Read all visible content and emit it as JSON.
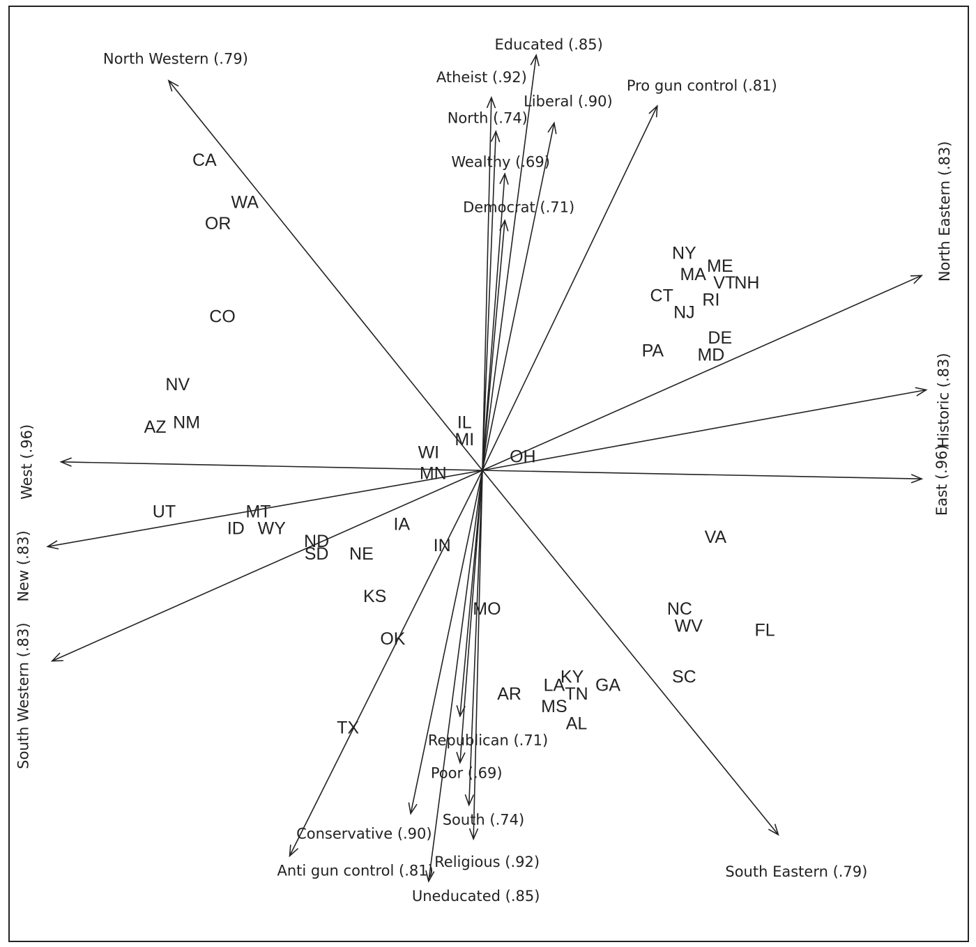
{
  "chart_data": {
    "type": "biplot",
    "vectors": [
      {
        "label": "Educated (.85)",
        "x": 0.12,
        "y": 0.98
      },
      {
        "label": "Uneducated (.85)",
        "x": -0.12,
        "y": -0.97
      },
      {
        "label": "Atheist (.92)",
        "x": 0.02,
        "y": 0.88
      },
      {
        "label": "Religious (.92)",
        "x": -0.02,
        "y": -0.87
      },
      {
        "label": "Liberal (.90)",
        "x": 0.16,
        "y": 0.82
      },
      {
        "label": "Conservative (.90)",
        "x": -0.16,
        "y": -0.81
      },
      {
        "label": "North (.74)",
        "x": 0.03,
        "y": 0.8
      },
      {
        "label": "South (.74)",
        "x": -0.03,
        "y": -0.79
      },
      {
        "label": "Wealthy (.69)",
        "x": 0.05,
        "y": 0.7
      },
      {
        "label": "Poor (.69)",
        "x": -0.05,
        "y": -0.69
      },
      {
        "label": "Democrat (.71)",
        "x": 0.05,
        "y": 0.59
      },
      {
        "label": "Republican (.71)",
        "x": -0.05,
        "y": -0.58
      },
      {
        "label": "Pro gun control (.81)",
        "x": 0.39,
        "y": 0.86
      },
      {
        "label": "Anti gun control (.81)",
        "x": -0.43,
        "y": -0.91
      },
      {
        "label": "North Western (.79)",
        "x": -0.7,
        "y": 0.92
      },
      {
        "label": "South Eastern (.79)",
        "x": 0.66,
        "y": -0.86
      },
      {
        "label": "North Eastern (.83)",
        "x": 0.98,
        "y": 0.46
      },
      {
        "label": "South Western (.83)",
        "x": -0.96,
        "y": -0.45
      },
      {
        "label": "Historic (.83)",
        "x": 0.99,
        "y": 0.19
      },
      {
        "label": "New (.83)",
        "x": -0.97,
        "y": -0.18
      },
      {
        "label": "East (.96)",
        "x": 0.98,
        "y": -0.02
      },
      {
        "label": "West (.96)",
        "x": -0.94,
        "y": 0.02
      }
    ],
    "points": [
      {
        "label": "CA",
        "x": -0.62,
        "y": 0.73
      },
      {
        "label": "WA",
        "x": -0.53,
        "y": 0.63
      },
      {
        "label": "OR",
        "x": -0.59,
        "y": 0.58
      },
      {
        "label": "CO",
        "x": -0.58,
        "y": 0.36
      },
      {
        "label": "NV",
        "x": -0.68,
        "y": 0.2
      },
      {
        "label": "AZ",
        "x": -0.73,
        "y": 0.1
      },
      {
        "label": "NM",
        "x": -0.66,
        "y": 0.11
      },
      {
        "label": "UT",
        "x": -0.71,
        "y": -0.1
      },
      {
        "label": "MT",
        "x": -0.5,
        "y": -0.1
      },
      {
        "label": "ID",
        "x": -0.55,
        "y": -0.14
      },
      {
        "label": "WY",
        "x": -0.47,
        "y": -0.14
      },
      {
        "label": "ND",
        "x": -0.37,
        "y": -0.17
      },
      {
        "label": "SD",
        "x": -0.37,
        "y": -0.2
      },
      {
        "label": "NE",
        "x": -0.27,
        "y": -0.2
      },
      {
        "label": "IA",
        "x": -0.18,
        "y": -0.13
      },
      {
        "label": "KS",
        "x": -0.24,
        "y": -0.3
      },
      {
        "label": "OK",
        "x": -0.2,
        "y": -0.4
      },
      {
        "label": "TX",
        "x": -0.3,
        "y": -0.61
      },
      {
        "label": "IL",
        "x": -0.04,
        "y": 0.11
      },
      {
        "label": "MI",
        "x": -0.04,
        "y": 0.07
      },
      {
        "label": "WI",
        "x": -0.12,
        "y": 0.04
      },
      {
        "label": "MN",
        "x": -0.11,
        "y": -0.01
      },
      {
        "label": "OH",
        "x": 0.09,
        "y": 0.03
      },
      {
        "label": "IN",
        "x": -0.09,
        "y": -0.18
      },
      {
        "label": "MO",
        "x": 0.01,
        "y": -0.33
      },
      {
        "label": "NY",
        "x": 0.45,
        "y": 0.51
      },
      {
        "label": "ME",
        "x": 0.53,
        "y": 0.48
      },
      {
        "label": "MA",
        "x": 0.47,
        "y": 0.46
      },
      {
        "label": "VT",
        "x": 0.54,
        "y": 0.44
      },
      {
        "label": "NH",
        "x": 0.59,
        "y": 0.44
      },
      {
        "label": "CT",
        "x": 0.4,
        "y": 0.41
      },
      {
        "label": "RI",
        "x": 0.51,
        "y": 0.4
      },
      {
        "label": "NJ",
        "x": 0.45,
        "y": 0.37
      },
      {
        "label": "DE",
        "x": 0.53,
        "y": 0.31
      },
      {
        "label": "MD",
        "x": 0.51,
        "y": 0.27
      },
      {
        "label": "PA",
        "x": 0.38,
        "y": 0.28
      },
      {
        "label": "VA",
        "x": 0.52,
        "y": -0.16
      },
      {
        "label": "NC",
        "x": 0.44,
        "y": -0.33
      },
      {
        "label": "WV",
        "x": 0.46,
        "y": -0.37
      },
      {
        "label": "FL",
        "x": 0.63,
        "y": -0.38
      },
      {
        "label": "SC",
        "x": 0.45,
        "y": -0.49
      },
      {
        "label": "KY",
        "x": 0.2,
        "y": -0.49
      },
      {
        "label": "LA",
        "x": 0.16,
        "y": -0.51
      },
      {
        "label": "TN",
        "x": 0.21,
        "y": -0.53
      },
      {
        "label": "GA",
        "x": 0.28,
        "y": -0.51
      },
      {
        "label": "AR",
        "x": 0.06,
        "y": -0.53
      },
      {
        "label": "MS",
        "x": 0.16,
        "y": -0.56
      },
      {
        "label": "AL",
        "x": 0.21,
        "y": -0.6
      }
    ]
  }
}
